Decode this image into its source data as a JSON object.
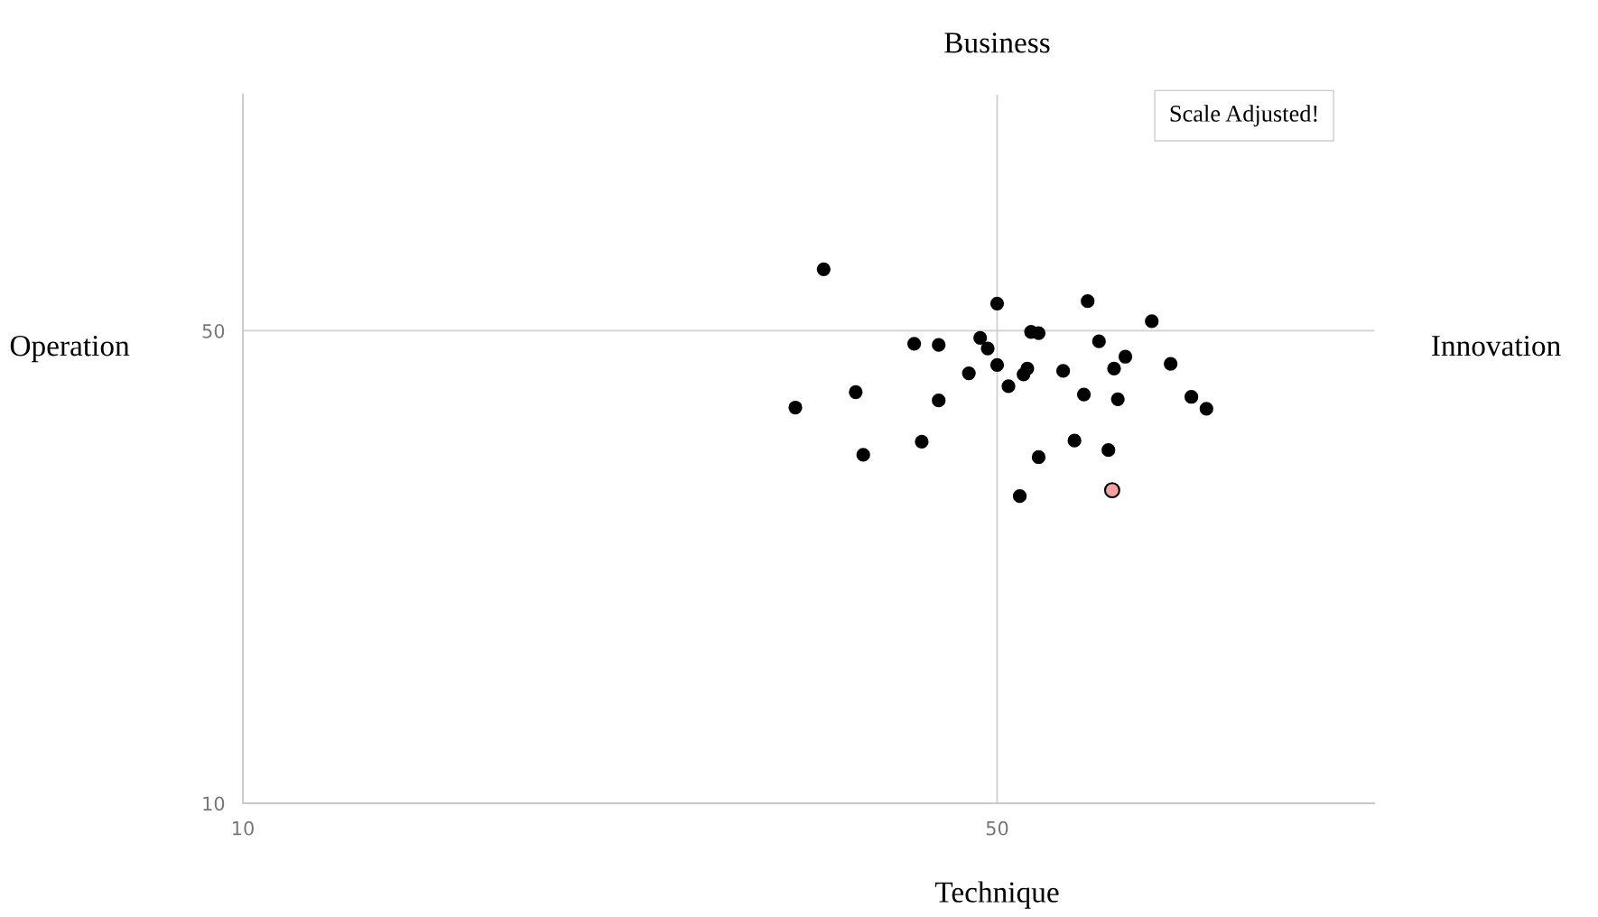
{
  "chart_data": {
    "type": "scatter",
    "title": "Business",
    "xlabel": "Technique",
    "ylabel": "Operation",
    "annotations": [
      "Innovation",
      "Scale Adjusted!"
    ],
    "xlim": [
      10,
      70
    ],
    "ylim": [
      10,
      70
    ],
    "xticks": [
      10,
      50
    ],
    "yticks": [
      10,
      50
    ],
    "grid": true,
    "marker": "circle",
    "legend": false,
    "series": [
      {
        "color": "#000000",
        "x": [
          40.8,
          50.0,
          54.8,
          58.2,
          51.8,
          52.2,
          49.1,
          45.6,
          46.9,
          49.5,
          55.4,
          56.8,
          50.0,
          51.6,
          56.2,
          59.2,
          48.5,
          51.4,
          53.5,
          50.6,
          42.5,
          54.6,
          56.4,
          60.3,
          46.9,
          39.3,
          61.1,
          46.0,
          54.1,
          55.9,
          42.9,
          52.2,
          51.2
        ],
        "values": [
          55.2,
          52.3,
          52.5,
          50.8,
          49.9,
          49.8,
          49.4,
          48.9,
          48.8,
          48.5,
          49.1,
          47.8,
          47.1,
          46.8,
          46.8,
          47.2,
          46.4,
          46.3,
          46.6,
          45.3,
          44.8,
          44.6,
          44.2,
          44.4,
          44.1,
          43.5,
          43.4,
          40.6,
          40.7,
          39.9,
          39.5,
          39.3,
          36.0
        ]
      },
      {
        "color": "#f4a3a0",
        "x": [
          56.1
        ],
        "values": [
          36.5
        ]
      }
    ]
  }
}
